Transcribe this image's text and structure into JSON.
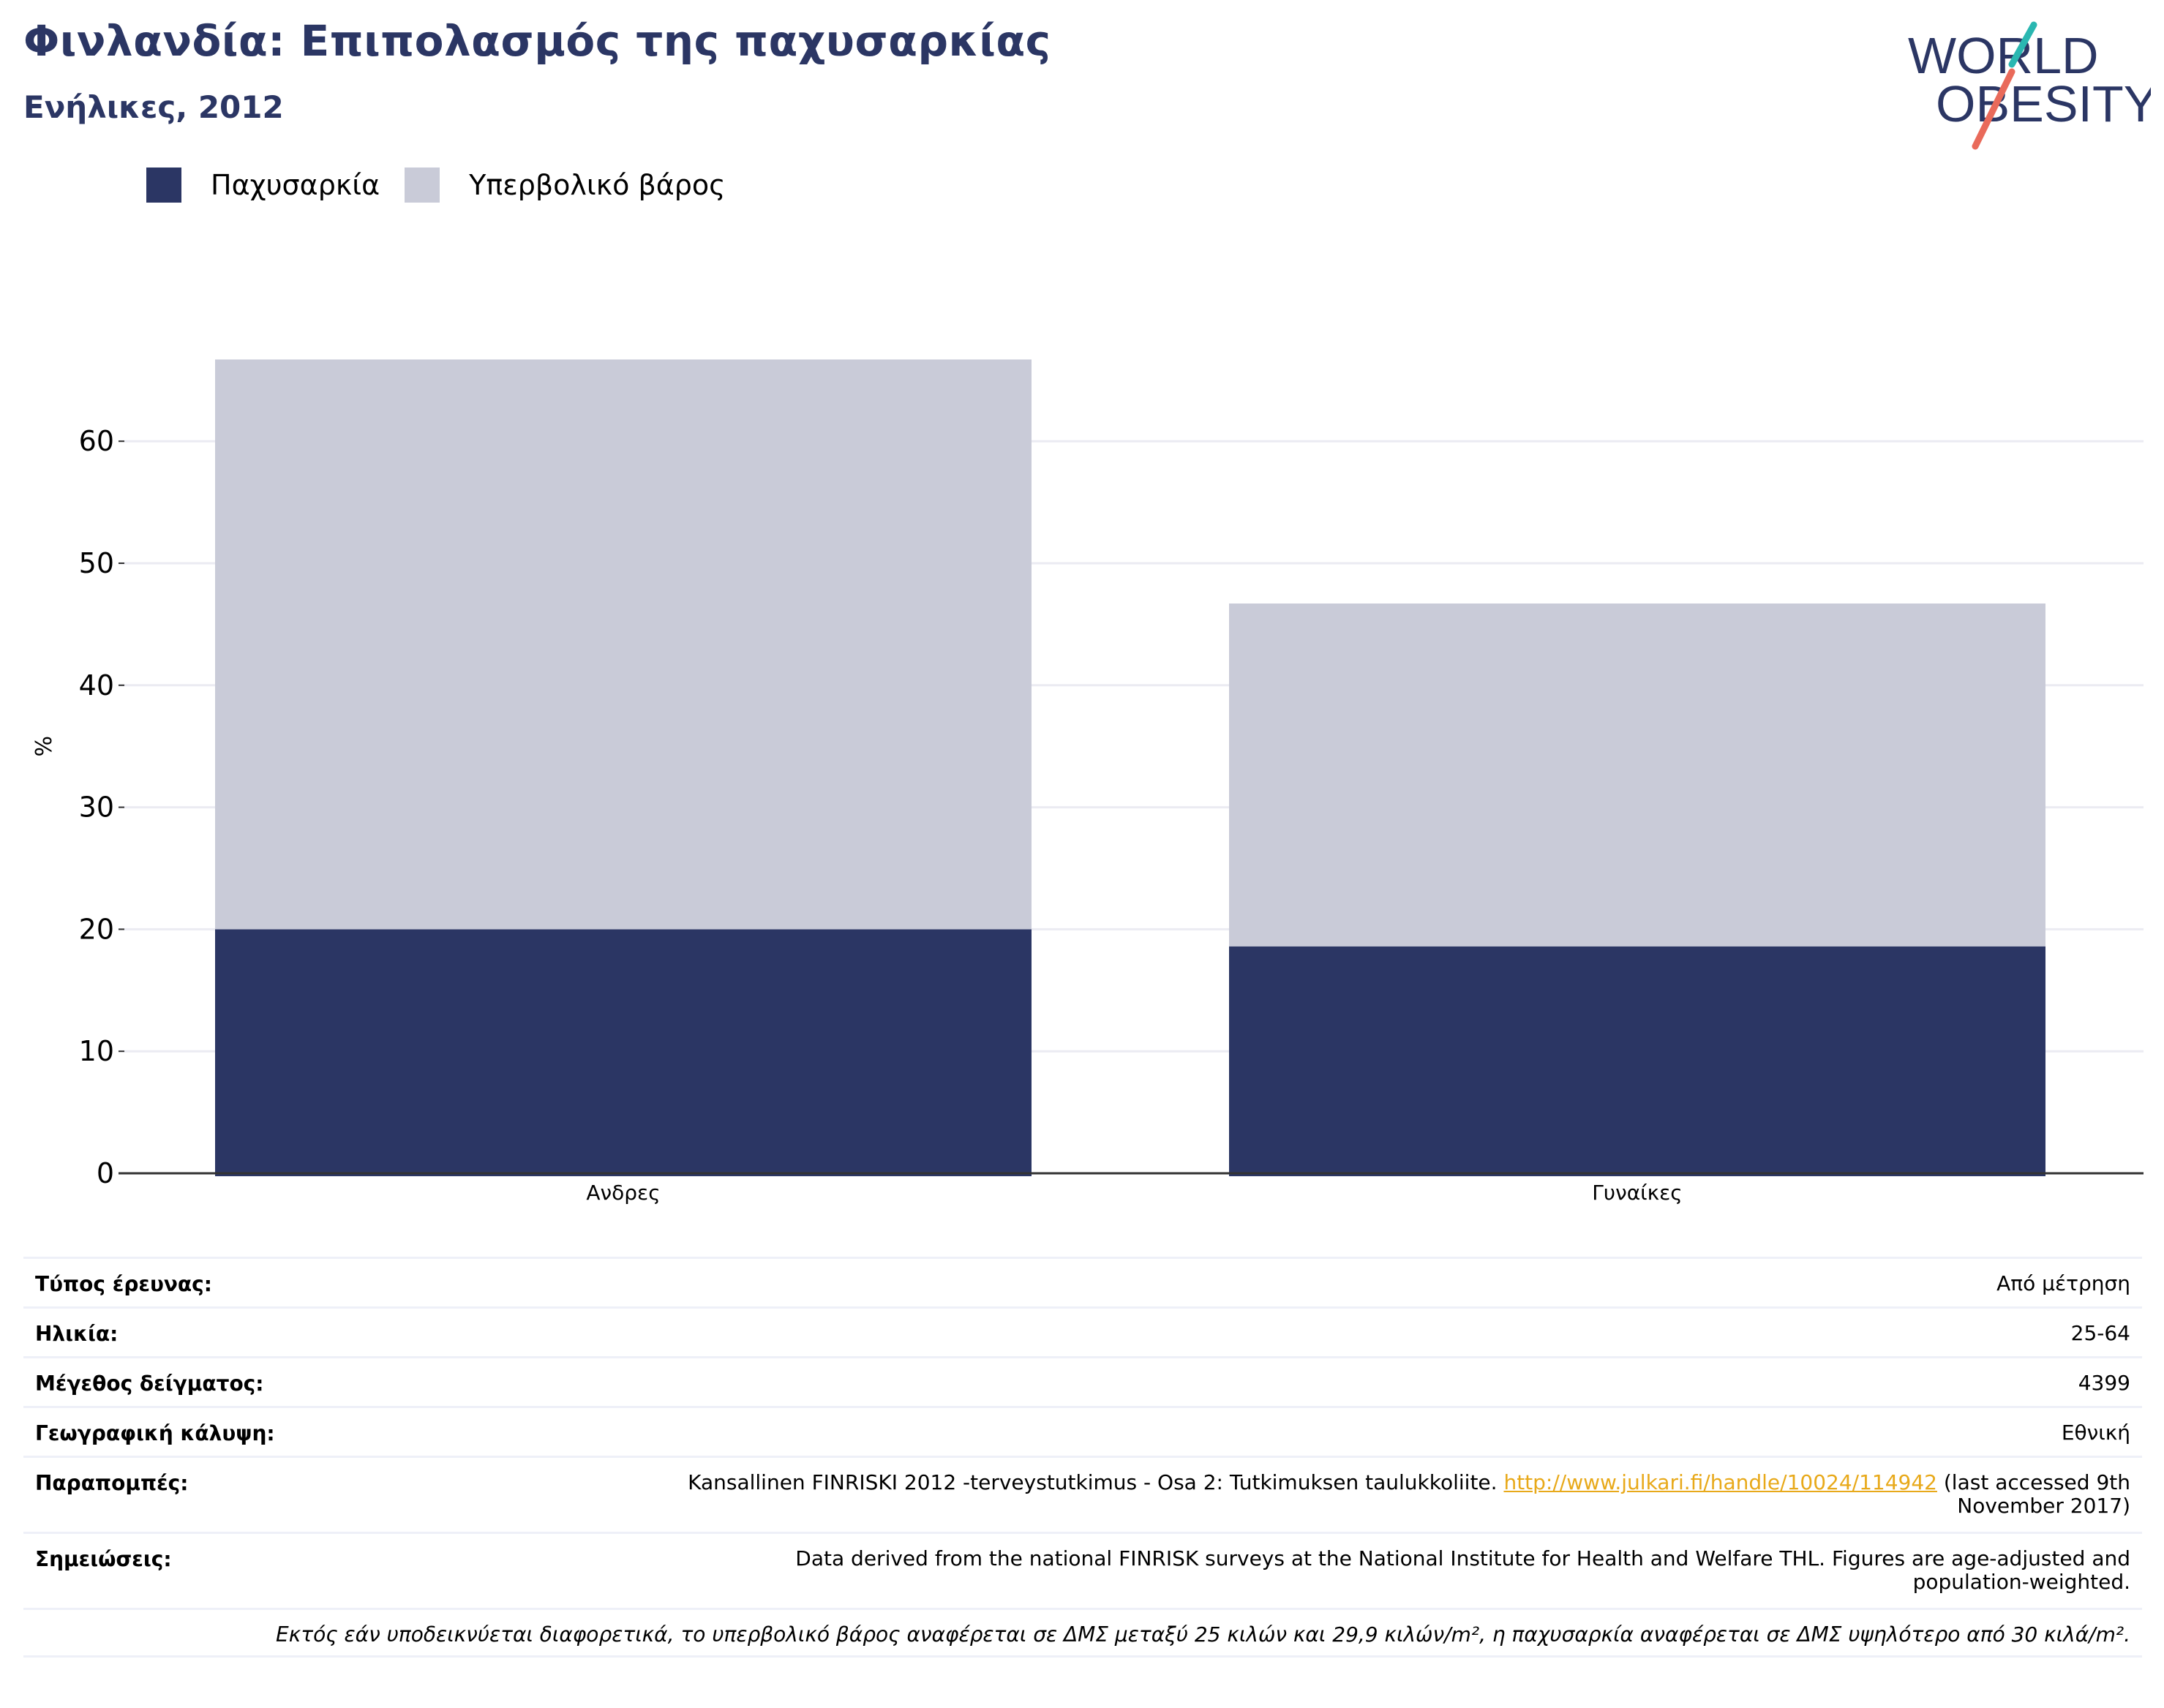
{
  "header": {
    "title": "Φινλανδία: Επιπολασμός της παχυσαρκίας",
    "subtitle": "Ενήλικες, 2012"
  },
  "logo": {
    "line1": "WORLD",
    "line2": "OBESITY",
    "accent_colors": [
      "#2ab7b1",
      "#e96a5a"
    ]
  },
  "colors": {
    "obesity": "#2b3664",
    "overweight": "#c9cbd8",
    "brand_text": "#2b3664",
    "link": "#e8a91a"
  },
  "chart_data": {
    "type": "bar",
    "stacked": true,
    "categories": [
      "Ανδρες",
      "Γυναίκες"
    ],
    "series": [
      {
        "name": "Παχυσαρκία",
        "values": [
          20.0,
          18.6
        ]
      },
      {
        "name": "Υπερβολικό βάρος",
        "values": [
          46.7,
          28.1
        ]
      }
    ],
    "ylabel": "%",
    "ylim": [
      0,
      70
    ],
    "yticks": [
      0,
      10,
      20,
      30,
      40,
      50,
      60
    ],
    "grid": true,
    "legend_position": "top-left"
  },
  "meta": {
    "survey_label": "Τύπος έρευνας:",
    "survey_value": "Από μέτρηση",
    "age_label": "Ηλικία:",
    "age_value": "25-64",
    "sample_label": "Μέγεθος δείγματος:",
    "sample_value": "4399",
    "coverage_label": "Γεωγραφική κάλυψη:",
    "coverage_value": "Εθνική",
    "refs_label": "Παραπομπές:",
    "refs_text": "Kansallinen FINRISKI 2012 -terveystutkimus - Osa 2: Tutkimuksen taulukkoliite.",
    "refs_link": "http://www.julkari.fi/handle/10024/114942",
    "refs_suffix_1": "(last accessed 9th",
    "refs_suffix_2": "November 2017)",
    "notes_label": "Σημειώσεις:",
    "notes_line1": "Data derived from the national FINRISK surveys at the National Institute for Health and Welfare THL. Figures are age-adjusted and",
    "notes_line2": "population-weighted.",
    "footnote": "Εκτός εάν υποδεικνύεται διαφορετικά, το υπερβολικό βάρος αναφέρεται σε ΔΜΣ μεταξύ 25 κιλών και 29,9 κιλών/m², η παχυσαρκία αναφέρεται σε ΔΜΣ υψηλότερο από 30 κιλά/m²."
  }
}
